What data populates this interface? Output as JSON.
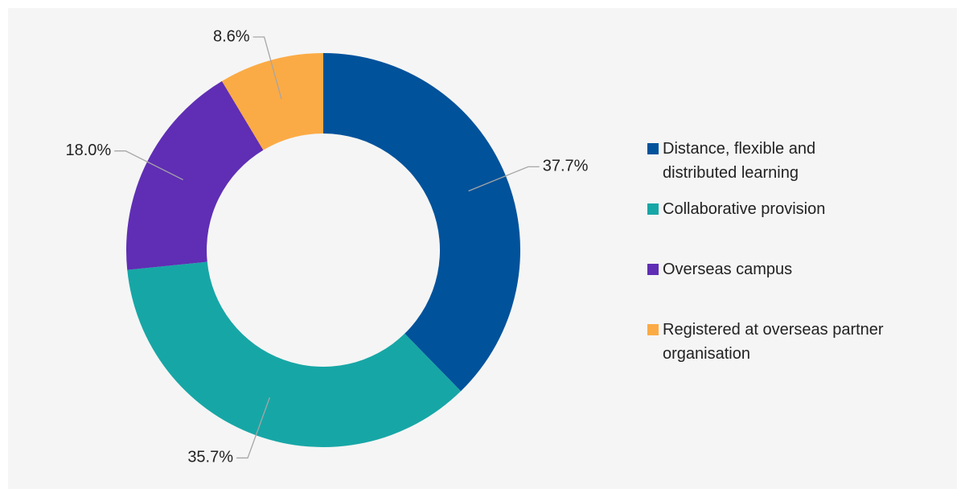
{
  "chart_data": {
    "type": "donut",
    "categories": [
      "Distance, flexible and distributed learning",
      "Collaborative provision",
      "Overseas campus",
      "Registered at overseas partner organisation"
    ],
    "values": [
      37.7,
      35.7,
      18.0,
      8.6
    ],
    "value_labels": [
      "37.7%",
      "35.7%",
      "18.0%",
      "8.6%"
    ],
    "colors": [
      "#00529b",
      "#17a6a6",
      "#5f2eb4",
      "#fbab45"
    ],
    "legend": "right"
  }
}
